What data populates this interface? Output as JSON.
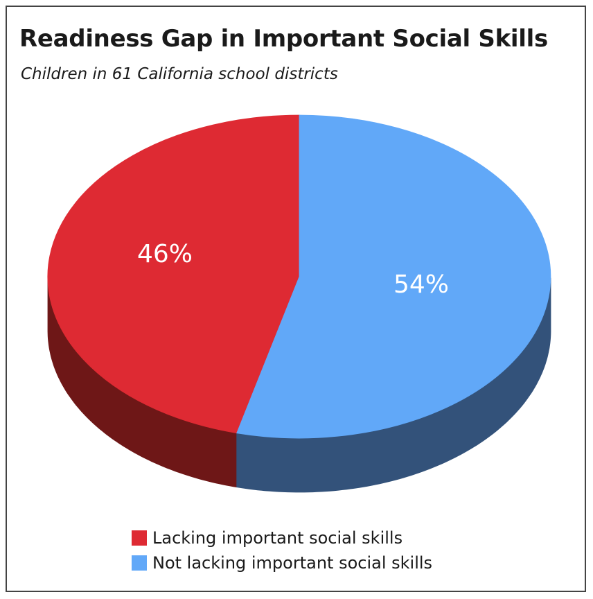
{
  "chart_data": {
    "type": "pie",
    "title": "Readiness Gap in Important Social Skills",
    "subtitle": "Children in 61 California school districts",
    "slices": [
      {
        "name": "Lacking important social skills",
        "value": 46,
        "label": "46%",
        "color": "#de2a33",
        "side_color": "#6e1717"
      },
      {
        "name": "Not lacking important social skills",
        "value": 54,
        "label": "54%",
        "color": "#61a8f8",
        "side_color": "#33527a"
      }
    ],
    "style": "3d"
  }
}
